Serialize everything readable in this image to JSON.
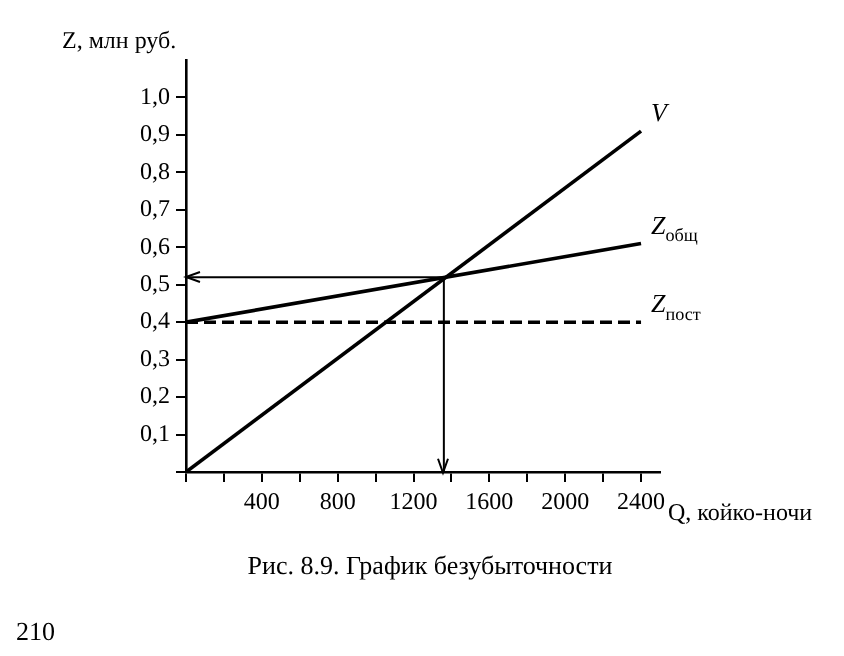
{
  "chart_data": {
    "type": "line",
    "ylabel": "Z, млн руб.",
    "xlabel": "Q, койко-ночи",
    "xlim": [
      0,
      2500
    ],
    "ylim": [
      0,
      1.1
    ],
    "xticks": [
      {
        "value": 0,
        "label": null
      },
      {
        "value": 200,
        "label": null
      },
      400,
      {
        "value": 600,
        "label": null
      },
      800,
      {
        "value": 1000,
        "label": null
      },
      1200,
      {
        "value": 1400,
        "label": null
      },
      1600,
      {
        "value": 1800,
        "label": null
      },
      2000,
      {
        "value": 2200,
        "label": null
      },
      2400
    ],
    "yticks": [
      {
        "value": 0,
        "label": null
      },
      {
        "value": 0.1,
        "label": "0,1"
      },
      {
        "value": 0.2,
        "label": "0,2"
      },
      {
        "value": 0.3,
        "label": "0,3"
      },
      {
        "value": 0.4,
        "label": "0,4"
      },
      {
        "value": 0.5,
        "label": "0,5"
      },
      {
        "value": 0.6,
        "label": "0,6"
      },
      {
        "value": 0.7,
        "label": "0,7"
      },
      {
        "value": 0.8,
        "label": "0,8"
      },
      {
        "value": 0.9,
        "label": "0,9"
      },
      {
        "value": 1.0,
        "label": "1,0"
      }
    ],
    "x": [
      0,
      2400
    ],
    "grid": false,
    "legend": false,
    "marker": "none",
    "series": [
      {
        "name": "V",
        "color": "#000000",
        "values": [
          0,
          0.91
        ],
        "line_style": "solid"
      },
      {
        "name": "Z$_{общ}$",
        "color": "#000000",
        "values": [
          0.4,
          0.61
        ],
        "line_style": "solid"
      },
      {
        "name": "Z$_{пост}$",
        "color": "#000000",
        "values": [
          0.4,
          0.4
        ],
        "line_style": "dashed"
      }
    ],
    "ref_lines": [
      {
        "axis": "y",
        "value": 0.52,
        "color": "#000000"
      },
      {
        "axis": "x",
        "value": 1360,
        "color": "#000000"
      }
    ],
    "annotations": [
      "Рис. 8.9. График безубыточности",
      "210"
    ]
  }
}
